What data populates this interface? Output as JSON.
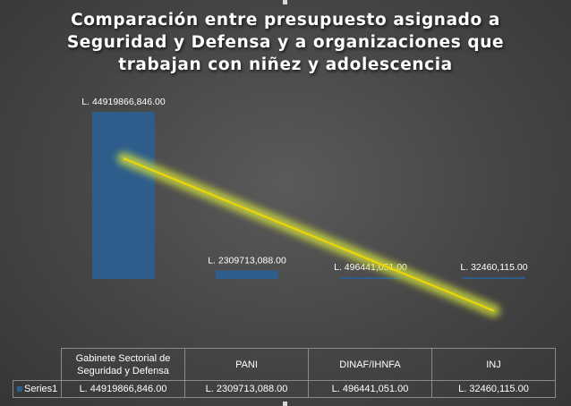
{
  "chart_data": {
    "type": "bar",
    "title": [
      "Comparación entre presupuesto asignado a",
      "Seguridad y Defensa y a organizaciones que",
      "trabajan con niñez y adolescencia"
    ],
    "categories": [
      "Gabinete Sectorial de Seguridad y Defensa",
      "PANI",
      "DINAF/IHNFA",
      "INJ"
    ],
    "series": [
      {
        "name": "Series1",
        "values": [
          4491986684600,
          230971308800,
          49644105100,
          3246011500
        ],
        "data_labels": [
          "L. 44919866,846.00",
          "L. 2309713,088.00",
          "L. 496441,051.00",
          "L. 32460,115.00"
        ],
        "table_labels": [
          "L. 44919866,846.00",
          "L. 2309713,088.00",
          "L. 496441,051.00",
          "L. 32460,115.00"
        ]
      }
    ],
    "trendline": "linear",
    "data_table": true,
    "legend": "in-data-table",
    "grid": false,
    "colors": {
      "bar": "#2e5d8c",
      "trendline": "#f2d600",
      "trendline_glow": "#d8e63a",
      "text": "#ffffff",
      "table_border": "#8a8a8a"
    }
  }
}
